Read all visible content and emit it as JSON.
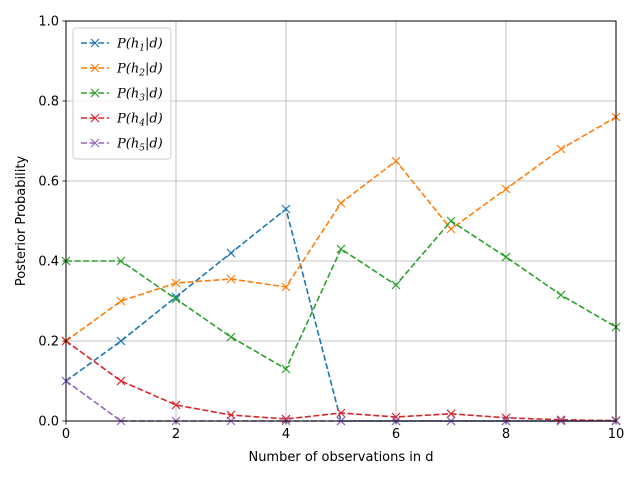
{
  "chart_data": {
    "type": "line",
    "xlabel": "Number of observations in d",
    "ylabel": "Posterior Probability",
    "xlim": [
      0,
      10
    ],
    "ylim": [
      0,
      1.0
    ],
    "xticks": [
      "0",
      "2",
      "4",
      "6",
      "8",
      "10"
    ],
    "yticks": [
      "0.0",
      "0.2",
      "0.4",
      "0.6",
      "0.8",
      "1.0"
    ],
    "grid": true,
    "legend_position": "top-left",
    "marker": "x",
    "line_style": "dashed",
    "x": [
      0,
      1,
      2,
      3,
      4,
      5,
      6,
      7,
      8,
      9,
      10
    ],
    "series": [
      {
        "name": "P(h1|d)",
        "label_parts": [
          "P(h",
          "1",
          "|d)"
        ],
        "color": "#1f77b4",
        "values": [
          0.1,
          0.2,
          0.31,
          0.42,
          0.53,
          0.0,
          0.0,
          0.0,
          0.0,
          0.0,
          0.0
        ]
      },
      {
        "name": "P(h2|d)",
        "label_parts": [
          "P(h",
          "2",
          "|d)"
        ],
        "color": "#ff7f0e",
        "values": [
          0.2,
          0.3,
          0.345,
          0.355,
          0.335,
          0.545,
          0.65,
          0.48,
          0.58,
          0.68,
          0.76
        ]
      },
      {
        "name": "P(h3|d)",
        "label_parts": [
          "P(h",
          "3",
          "|d)"
        ],
        "color": "#2ca02c",
        "values": [
          0.4,
          0.4,
          0.305,
          0.21,
          0.13,
          0.43,
          0.34,
          0.5,
          0.41,
          0.315,
          0.235
        ]
      },
      {
        "name": "P(h4|d)",
        "label_parts": [
          "P(h",
          "4",
          "|d)"
        ],
        "color": "#d62728",
        "values": [
          0.2,
          0.1,
          0.04,
          0.015,
          0.005,
          0.02,
          0.01,
          0.018,
          0.008,
          0.003,
          0.001
        ]
      },
      {
        "name": "P(h5|d)",
        "label_parts": [
          "P(h",
          "5",
          "|d)"
        ],
        "color": "#9467bd",
        "values": [
          0.1,
          0.0,
          0.0,
          0.0,
          0.0,
          0.0,
          0.0,
          0.0,
          0.0,
          0.0,
          0.0
        ]
      }
    ]
  }
}
